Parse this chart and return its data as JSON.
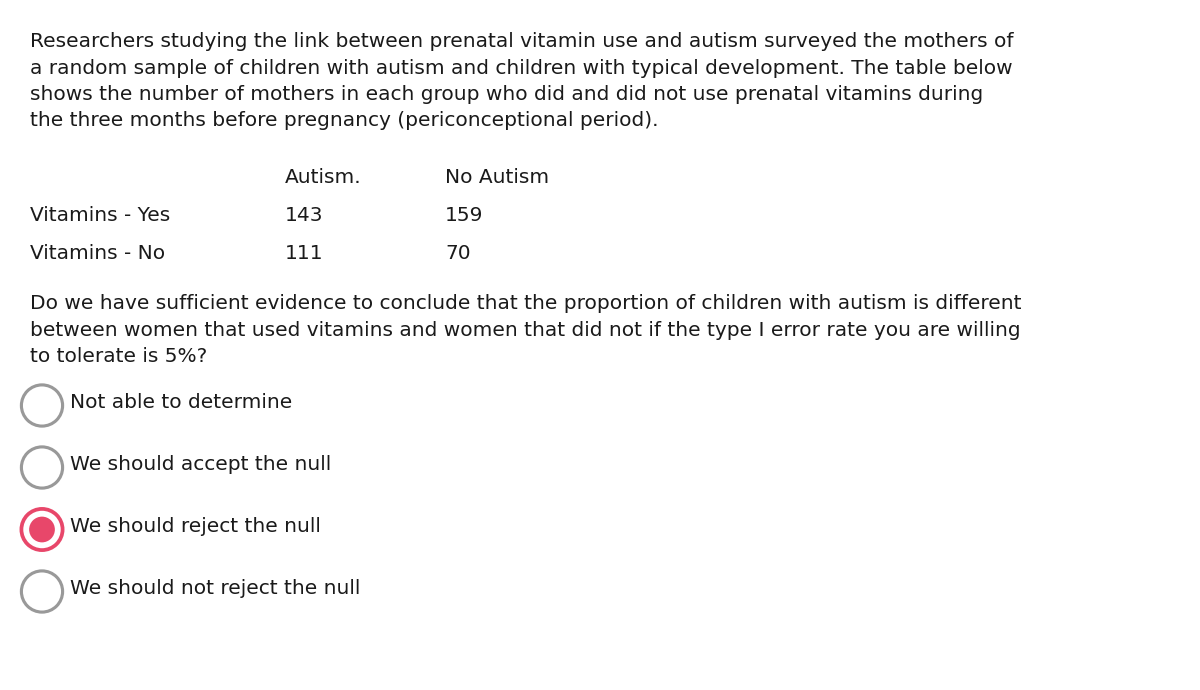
{
  "background_color": "#ffffff",
  "text_color": "#1a1a1a",
  "paragraph1_lines": [
    "Researchers studying the link between prenatal vitamin use and autism surveyed the mothers of",
    "a random sample of children with autism and children with typical development. The table below",
    "shows the number of mothers in each group who did and did not use prenatal vitamins during",
    "the three months before pregnancy (periconceptional period)."
  ],
  "table_header": [
    "Autism.",
    "No Autism"
  ],
  "table_rows": [
    {
      "label": "Vitamins - Yes",
      "autism": "143",
      "no_autism": "159"
    },
    {
      "label": "Vitamins - No",
      "autism": "111",
      "no_autism": "70"
    }
  ],
  "paragraph2_lines": [
    "Do we have sufficient evidence to conclude that the proportion of children with autism is different",
    "between women that used vitamins and women that did not if the type I error rate you are willing",
    "to tolerate is 5%?"
  ],
  "choices": [
    {
      "text": "Not able to determine",
      "selected": false
    },
    {
      "text": "We should accept the null",
      "selected": false
    },
    {
      "text": "We should reject the null",
      "selected": true
    },
    {
      "text": "We should not reject the null",
      "selected": false
    }
  ],
  "font_size": 14.5,
  "radio_outer_color_normal": "#999999",
  "radio_outer_color_selected": "#e8476a",
  "radio_inner_color": "#e8476a"
}
